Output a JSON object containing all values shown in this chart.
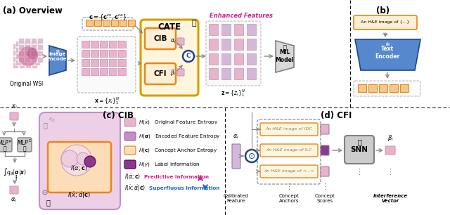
{
  "title_a": "(a) Overview",
  "title_b": "(b)",
  "title_c": "(c) CIB",
  "title_d": "(d) CFI",
  "color_orange": "#E8861A",
  "color_orange_light": "#F5C88A",
  "color_pink_light": "#E8B4CC",
  "color_pink_med": "#CC99BB",
  "color_purple_light": "#D4B8D8",
  "color_purple_med": "#C090C8",
  "color_purple_dark": "#8B3A8B",
  "color_gold": "#D4A000",
  "color_blue_enc": "#5588CC",
  "color_blue_dark": "#224488",
  "color_gray": "#AAAAAA",
  "color_gray_light": "#CCCCCC",
  "color_gray_box": "#D8D8D8",
  "color_bg_pink_outer": "#EDD0E8",
  "color_bg_pink_inner": "#D8A8D0",
  "color_orange_bg": "#FDDDB8",
  "color_magenta": "#CC2288",
  "color_blue_arrow": "#2266CC",
  "color_white": "#FFFFFF",
  "color_wsi_pink": "#CC88AA",
  "color_wsi_grid": "#DDBBCC"
}
